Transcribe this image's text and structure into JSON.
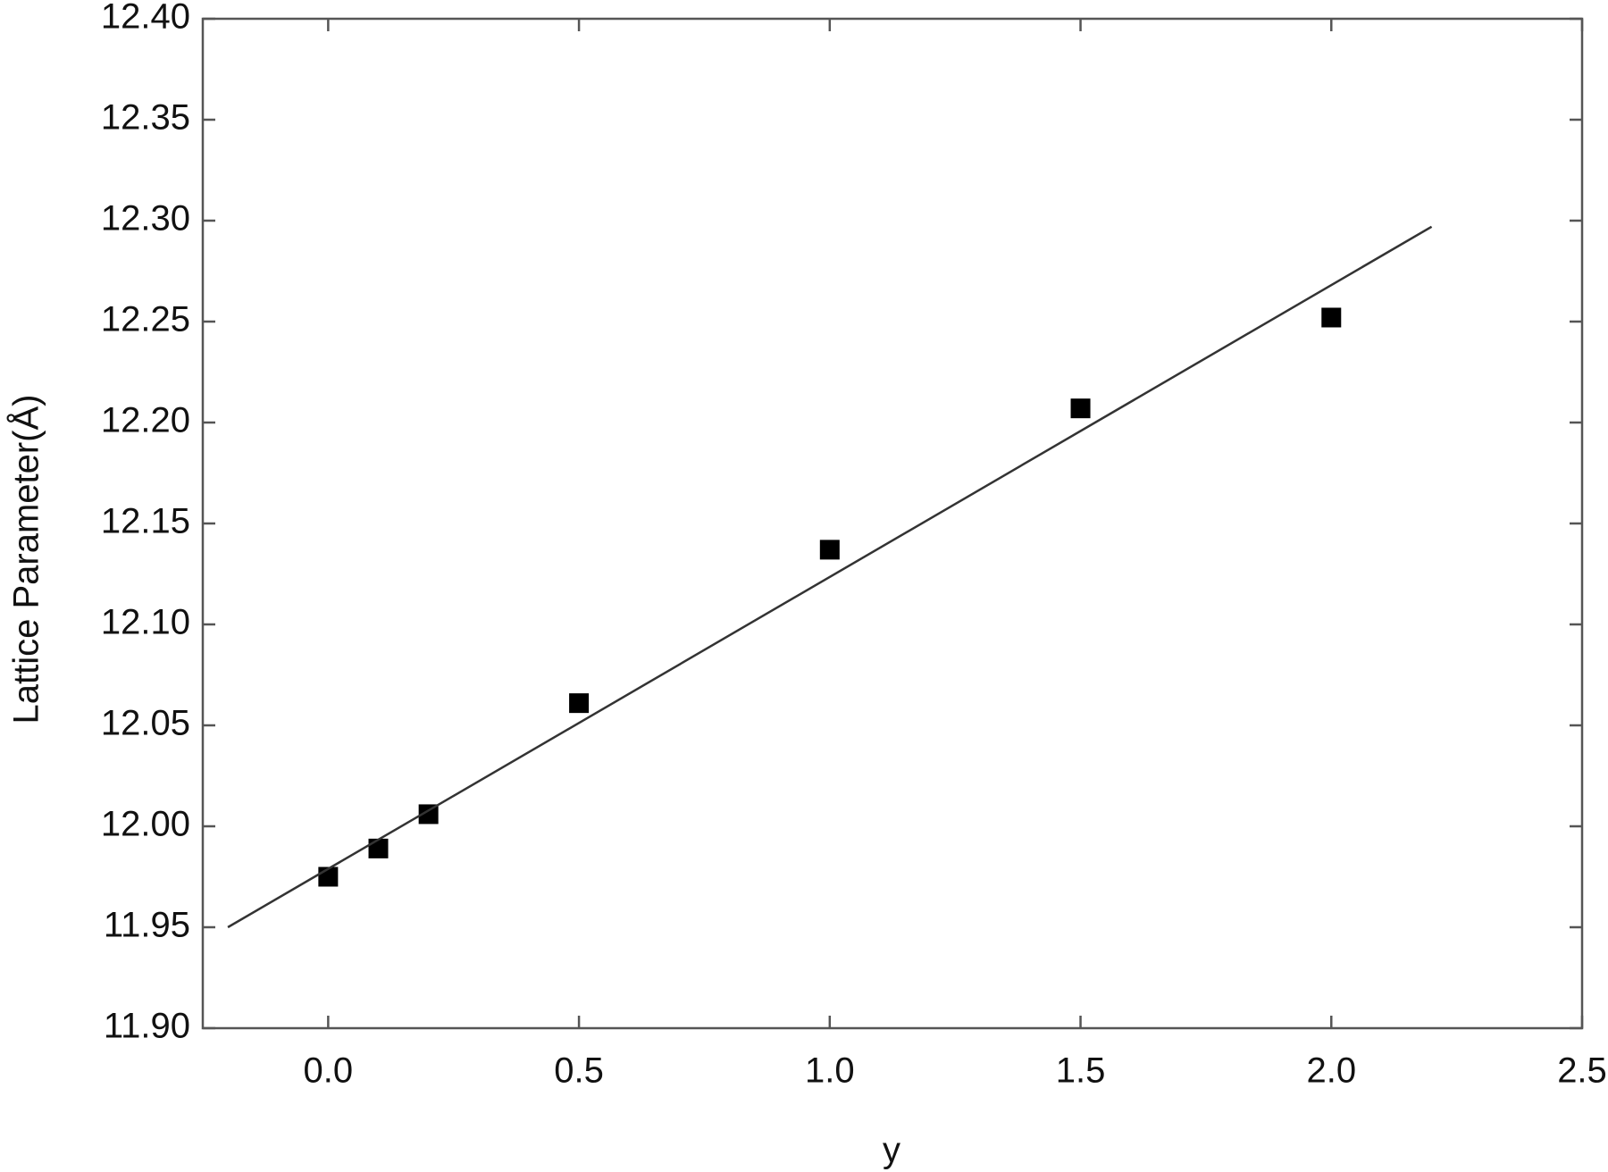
{
  "chart_data": {
    "type": "scatter",
    "x_label": "y",
    "y_label": "Lattice Parameter(Å)",
    "xlim": [
      -0.25,
      2.5
    ],
    "ylim": [
      11.9,
      12.4
    ],
    "xticks": [
      {
        "value": 0,
        "label": "0.0"
      },
      0.5,
      {
        "value": 1,
        "label": "1.0"
      },
      1.5,
      {
        "value": 2,
        "label": "2.0"
      },
      2.5
    ],
    "yticks": [
      {
        "value": 11.9,
        "label": "11.90"
      },
      11.95,
      {
        "value": 12.0,
        "label": "12.00"
      },
      12.05,
      {
        "value": 12.1,
        "label": "12.10"
      },
      12.15,
      {
        "value": 12.2,
        "label": "12.20"
      },
      12.25,
      {
        "value": 12.3,
        "label": "12.30"
      },
      12.35,
      {
        "value": 12.4,
        "label": "12.40"
      }
    ],
    "series": [
      {
        "mode": "markers",
        "color": "#000000",
        "x": [
          0,
          0.1,
          0.2,
          0.5,
          1.0,
          1.5,
          2.0
        ],
        "values": [
          11.975,
          11.989,
          12.006,
          12.061,
          12.137,
          12.207,
          12.252
        ]
      },
      {
        "mode": "line",
        "color": "#333333",
        "x": [
          -0.2,
          2.2
        ],
        "values": [
          11.95,
          12.297
        ]
      }
    ]
  }
}
